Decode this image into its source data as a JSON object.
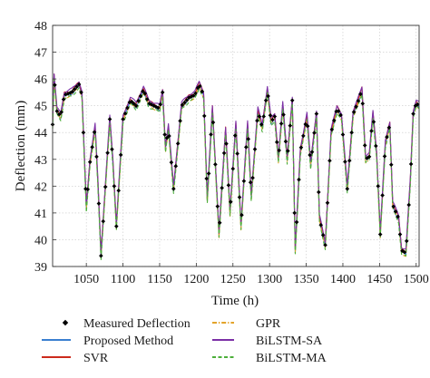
{
  "chart_data": {
    "type": "line",
    "xlabel": "Time (h)",
    "ylabel": "Deflection (mm)",
    "xlim": [
      1004,
      1504
    ],
    "ylim": [
      39,
      48
    ],
    "x_ticks": [
      1050,
      1100,
      1150,
      1200,
      1250,
      1300,
      1350,
      1400,
      1450,
      1500
    ],
    "y_ticks": [
      39,
      40,
      41,
      42,
      43,
      44,
      45,
      46,
      47,
      48
    ],
    "grid": true,
    "legend_position": "bottom",
    "keypoints": [
      [
        1004,
        44.3
      ],
      [
        1006,
        46.1
      ],
      [
        1010,
        44.8
      ],
      [
        1015,
        44.6
      ],
      [
        1020,
        45.4
      ],
      [
        1030,
        45.5
      ],
      [
        1040,
        45.8
      ],
      [
        1044,
        45.4
      ],
      [
        1050,
        41.2
      ],
      [
        1055,
        42.9
      ],
      [
        1062,
        44.2
      ],
      [
        1066,
        42.0
      ],
      [
        1070,
        39.4
      ],
      [
        1077,
        42.4
      ],
      [
        1082,
        44.5
      ],
      [
        1086,
        43.0
      ],
      [
        1091,
        40.5
      ],
      [
        1100,
        44.5
      ],
      [
        1110,
        45.2
      ],
      [
        1118,
        45.0
      ],
      [
        1128,
        45.6
      ],
      [
        1135,
        45.1
      ],
      [
        1142,
        45.0
      ],
      [
        1150,
        44.9
      ],
      [
        1154,
        45.5
      ],
      [
        1158,
        43.4
      ],
      [
        1162,
        44.2
      ],
      [
        1169,
        41.9
      ],
      [
        1180,
        45.0
      ],
      [
        1190,
        45.3
      ],
      [
        1198,
        45.4
      ],
      [
        1204,
        45.8
      ],
      [
        1210,
        45.4
      ],
      [
        1215,
        41.5
      ],
      [
        1222,
        44.9
      ],
      [
        1231,
        40.2
      ],
      [
        1240,
        44.1
      ],
      [
        1246,
        41.0
      ],
      [
        1254,
        44.3
      ],
      [
        1261,
        40.5
      ],
      [
        1270,
        44.3
      ],
      [
        1275,
        41.6
      ],
      [
        1284,
        44.8
      ],
      [
        1290,
        44.2
      ],
      [
        1297,
        45.6
      ],
      [
        1302,
        44.4
      ],
      [
        1307,
        44.6
      ],
      [
        1312,
        43.0
      ],
      [
        1318,
        45.0
      ],
      [
        1324,
        43.0
      ],
      [
        1331,
        45.2
      ],
      [
        1335,
        39.6
      ],
      [
        1342,
        43.3
      ],
      [
        1351,
        44.6
      ],
      [
        1356,
        42.8
      ],
      [
        1364,
        44.7
      ],
      [
        1368,
        40.8
      ],
      [
        1376,
        39.8
      ],
      [
        1384,
        44.0
      ],
      [
        1392,
        44.9
      ],
      [
        1398,
        44.6
      ],
      [
        1406,
        41.9
      ],
      [
        1414,
        44.7
      ],
      [
        1420,
        45.1
      ],
      [
        1426,
        45.6
      ],
      [
        1431,
        43.0
      ],
      [
        1436,
        43.1
      ],
      [
        1441,
        44.7
      ],
      [
        1446,
        43.2
      ],
      [
        1451,
        40.2
      ],
      [
        1458,
        43.6
      ],
      [
        1464,
        44.3
      ],
      [
        1468,
        41.3
      ],
      [
        1476,
        40.8
      ],
      [
        1480,
        39.6
      ],
      [
        1486,
        39.5
      ],
      [
        1492,
        42.2
      ],
      [
        1496,
        44.7
      ],
      [
        1500,
        45.1
      ],
      [
        1504,
        45.0
      ]
    ],
    "series": [
      {
        "name": "Measured Deflection",
        "style": "markers",
        "color": "#000000",
        "offset": 0.0
      },
      {
        "name": "Proposed Method",
        "style": "solid",
        "color": "#3a7fd0",
        "offset": -0.05
      },
      {
        "name": "SVR",
        "style": "solid",
        "color": "#cc2a1c",
        "offset": 0.07
      },
      {
        "name": "GPR",
        "style": "dashdot",
        "color": "#e3a32a",
        "offset": -0.1
      },
      {
        "name": "BiLSTM-SA",
        "style": "solid",
        "color": "#7b2fa6",
        "offset": 0.12
      },
      {
        "name": "BiLSTM-MA",
        "style": "dashed",
        "color": "#4caf3a",
        "offset": -0.14
      }
    ]
  }
}
